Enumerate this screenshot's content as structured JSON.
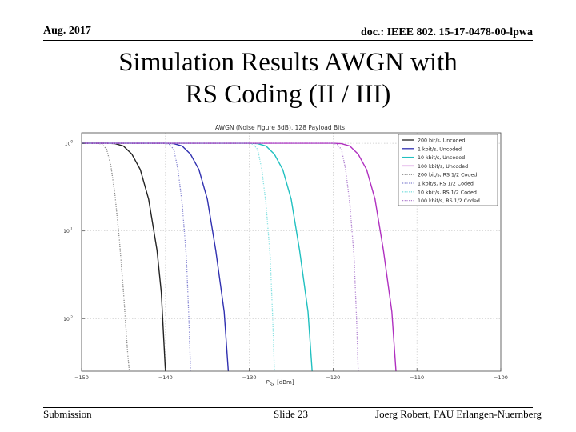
{
  "header": {
    "date": "Aug. 2017",
    "doc_id": "doc.: IEEE 802. 15-17-0478-00-lpwa"
  },
  "slide_title": {
    "line1": "Simulation Results AWGN with",
    "line2": "RS Coding (II / III)"
  },
  "footer": {
    "left": "Submission",
    "center": "Slide 23",
    "right": "Joerg Robert, FAU Erlangen-Nuernberg"
  },
  "chart_data": {
    "type": "line",
    "title": "AWGN (Noise Figure 3dB), 128 Payload Bits",
    "xlabel_main": "P",
    "xlabel_sub": "Rx",
    "xlabel_unit": "[dBm]",
    "ylabel": "",
    "xlim": [
      -150,
      -100
    ],
    "ylim_log10": [
      -2.6,
      0.12
    ],
    "y_scale": "log",
    "grid": true,
    "legend_position": "top-right",
    "x_ticks": [
      -150,
      -140,
      -130,
      -120,
      -110,
      -100
    ],
    "x_tick_labels": [
      "−150",
      "−140",
      "−130",
      "−120",
      "−110",
      "−100"
    ],
    "y_ticks_log10": [
      0,
      -1,
      -2
    ],
    "y_tick_base": "10",
    "y_tick_exps": [
      "0",
      "-1",
      "-2"
    ],
    "series": [
      {
        "name": "200 bit/s, Uncoded",
        "color": "#222222",
        "dash": "solid",
        "x": [
          -150,
          -147,
          -146,
          -145,
          -144,
          -143,
          -142,
          -141,
          -140.5,
          -140
        ],
        "y": [
          1,
          1,
          0.99,
          0.93,
          0.75,
          0.5,
          0.23,
          0.06,
          0.02,
          0.0025
        ]
      },
      {
        "name": "1 kbit/s, Uncoded",
        "color": "#3030b0",
        "dash": "solid",
        "x": [
          -150,
          -140,
          -139,
          -138,
          -137,
          -136,
          -135,
          -134,
          -133,
          -132.5
        ],
        "y": [
          1,
          1,
          0.99,
          0.93,
          0.75,
          0.5,
          0.23,
          0.06,
          0.012,
          0.0025
        ]
      },
      {
        "name": "10 kbit/s, Uncoded",
        "color": "#20c0c0",
        "dash": "solid",
        "x": [
          -150,
          -130,
          -129,
          -128,
          -127,
          -126,
          -125,
          -124,
          -123,
          -122.5
        ],
        "y": [
          1,
          1,
          0.99,
          0.93,
          0.75,
          0.5,
          0.23,
          0.06,
          0.012,
          0.0025
        ]
      },
      {
        "name": "100 kbit/s, Uncoded",
        "color": "#b030c0",
        "dash": "solid",
        "x": [
          -150,
          -120,
          -119,
          -118,
          -117,
          -116,
          -115,
          -114,
          -113,
          -112.5
        ],
        "y": [
          1,
          1,
          0.99,
          0.93,
          0.75,
          0.5,
          0.23,
          0.06,
          0.012,
          0.0025
        ]
      },
      {
        "name": "200 bit/s, RS 1/2 Coded",
        "color": "#888888",
        "dash": "dotted",
        "x": [
          -150,
          -148,
          -147.5,
          -147,
          -146.5,
          -146,
          -145.5,
          -145,
          -144.5,
          -144.3
        ],
        "y": [
          1,
          1,
          0.97,
          0.85,
          0.55,
          0.25,
          0.08,
          0.02,
          0.004,
          0.0025
        ]
      },
      {
        "name": "1 kbit/s, RS 1/2 Coded",
        "color": "#8080d0",
        "dash": "dotted",
        "x": [
          -150,
          -140,
          -139.5,
          -139,
          -138.5,
          -138,
          -137.5,
          -137.2,
          -137
        ],
        "y": [
          1,
          1,
          0.97,
          0.85,
          0.5,
          0.2,
          0.05,
          0.01,
          0.0025
        ]
      },
      {
        "name": "10 kbit/s, RS 1/2 Coded",
        "color": "#80e0e0",
        "dash": "dotted",
        "x": [
          -150,
          -130,
          -129.5,
          -129,
          -128.5,
          -128,
          -127.5,
          -127.2,
          -127
        ],
        "y": [
          1,
          1,
          0.97,
          0.85,
          0.5,
          0.2,
          0.05,
          0.01,
          0.0025
        ]
      },
      {
        "name": "100 kbit/s, RS 1/2 Coded",
        "color": "#b080d0",
        "dash": "dotted",
        "x": [
          -150,
          -120,
          -119.5,
          -119,
          -118.5,
          -118,
          -117.5,
          -117.2,
          -117
        ],
        "y": [
          1,
          1,
          0.97,
          0.85,
          0.5,
          0.2,
          0.05,
          0.01,
          0.0025
        ]
      }
    ]
  }
}
